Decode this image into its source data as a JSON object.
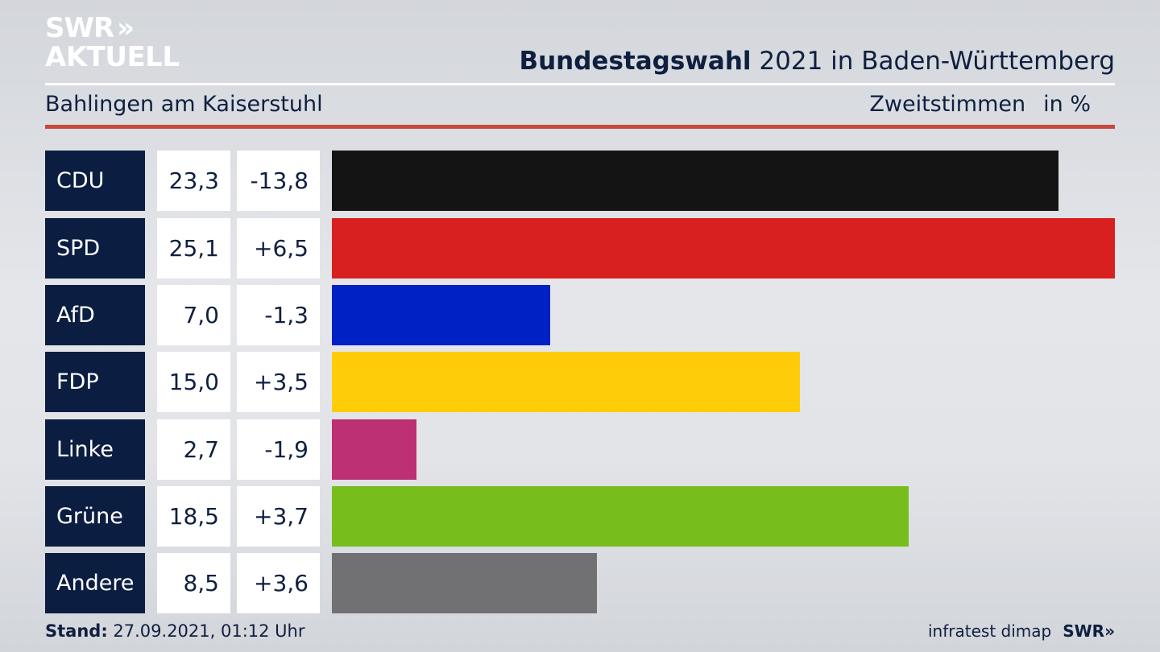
{
  "logo": {
    "line1": "SWR",
    "arrows": "»",
    "line2": "AKTUELL"
  },
  "header": {
    "title_bold": "Bundestagswahl",
    "title_rest": " 2021 in Baden-Württemberg",
    "subtitle": "Bahlingen am Kaiserstuhl",
    "measure": "Zweitstimmen",
    "unit": "in %"
  },
  "footer": {
    "stand_label": "Stand:",
    "stand_value": " 27.09.2021, 01:12 Uhr",
    "source": "infratest dimap",
    "brand": "SWR",
    "brand_arrows": "»"
  },
  "chart_data": {
    "type": "bar",
    "orientation": "horizontal",
    "title": "Bundestagswahl 2021 in Baden-Württemberg",
    "subtitle": "Bahlingen am Kaiserstuhl",
    "measure": "Zweitstimmen",
    "unit": "in %",
    "categories": [
      "CDU",
      "SPD",
      "AfD",
      "FDP",
      "Linke",
      "Grüne",
      "Andere"
    ],
    "values": [
      23.3,
      25.1,
      7.0,
      15.0,
      2.7,
      18.5,
      8.5
    ],
    "value_labels": [
      "23,3",
      "25,1",
      "7,0",
      "15,0",
      "2,7",
      "18,5",
      "8,5"
    ],
    "changes": [
      -13.8,
      6.5,
      -1.3,
      3.5,
      -1.9,
      3.7,
      3.6
    ],
    "change_labels": [
      "-13,8",
      "+6,5",
      "-1,3",
      "+3,5",
      "-1,9",
      "+3,7",
      "+3,6"
    ],
    "colors": [
      "#141414",
      "#d82020",
      "#0021c4",
      "#ffcc0a",
      "#bd3074",
      "#77bd1c",
      "#717174"
    ],
    "xlim": [
      0,
      25.1
    ],
    "grid": false
  }
}
